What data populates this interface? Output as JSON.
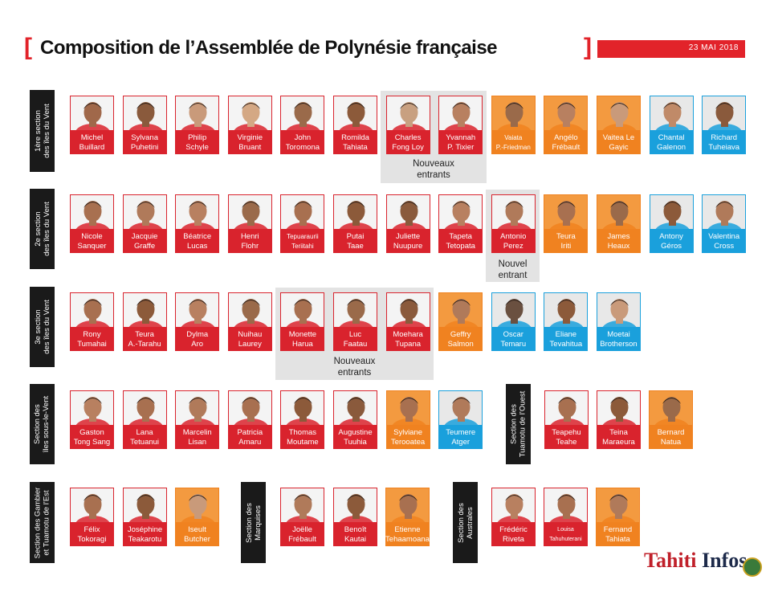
{
  "header": {
    "bracket_left": "[",
    "title": "Composition de l’Assemblée de Polynésie française",
    "bracket_right": "]",
    "date": "23 MAI 2018"
  },
  "colors": {
    "red_party": "#d9232d",
    "orange_party": "#f08220",
    "blue_party": "#1aa0dc",
    "accent": "#e2232a"
  },
  "sections": [
    "1ère section\ndes îles du Vent",
    "2e section\ndes îles du Vent",
    "3e section\ndes îles du Vent",
    "Section des\nîles sous-le-Vent",
    "Section des\nTuamotu de l’Ouest",
    "Section des Gambier\net Tuamotu de l’Est",
    "Section des\nMarquises",
    "Section des\nAustrales"
  ],
  "notes": {
    "nouveaux_entrants_l1": "Nouveaux",
    "nouveaux_entrants_l2": "entrants",
    "nouvel_entrant_l1": "Nouvel",
    "nouvel_entrant_l2": "entrant"
  },
  "members": [
    {
      "l1": "Michel",
      "l2": "Buillard",
      "color": "red",
      "skin": "#a0684a"
    },
    {
      "l1": "Sylvana",
      "l2": "Puhetini",
      "color": "red",
      "skin": "#8a5a3c"
    },
    {
      "l1": "Philip",
      "l2": "Schyle",
      "color": "red",
      "skin": "#c99a7a"
    },
    {
      "l1": "Virginie",
      "l2": "Bruant",
      "color": "red",
      "skin": "#d4a884"
    },
    {
      "l1": "John",
      "l2": "Toromona",
      "color": "red",
      "skin": "#9a6a4a"
    },
    {
      "l1": "Romilda",
      "l2": "Tahiata",
      "color": "red",
      "skin": "#8c5a3a"
    },
    {
      "l1": "Charles",
      "l2": "Fong Loy",
      "color": "red",
      "skin": "#c8a080"
    },
    {
      "l1": "Yvannah",
      "l2": "P. Tixier",
      "color": "red",
      "skin": "#b88060"
    },
    {
      "l1": "Vaiata",
      "l2": "P.-Friedman",
      "color": "orange",
      "skin": "#9a6a4a"
    },
    {
      "l1": "Angélo",
      "l2": "Frébault",
      "color": "orange",
      "skin": "#b88060"
    },
    {
      "l1": "Vaitea Le",
      "l2": "Gayic",
      "color": "orange",
      "skin": "#c99a7a"
    },
    {
      "l1": "Chantal",
      "l2": "Galenon",
      "color": "blue",
      "skin": "#c08a68"
    },
    {
      "l1": "Richard",
      "l2": "Tuheiava",
      "color": "blue",
      "skin": "#8a5a3c"
    },
    {
      "l1": "Nicole",
      "l2": "Sanquer",
      "color": "red",
      "skin": "#a87050"
    },
    {
      "l1": "Jacquie",
      "l2": "Graffe",
      "color": "red",
      "skin": "#b07a5a"
    },
    {
      "l1": "Béatrice",
      "l2": "Lucas",
      "color": "red",
      "skin": "#b88060"
    },
    {
      "l1": "Henri",
      "l2": "Flohr",
      "color": "red",
      "skin": "#9a6a4a"
    },
    {
      "l1": "Tepuaraurii",
      "l2": "Teriitahi",
      "color": "red",
      "skin": "#a87050"
    },
    {
      "l1": "Putai",
      "l2": "Taae",
      "color": "red",
      "skin": "#8c5a3a"
    },
    {
      "l1": "Juliette",
      "l2": "Nuupure",
      "color": "red",
      "skin": "#8a5a3c"
    },
    {
      "l1": "Tapeta",
      "l2": "Tetopata",
      "color": "red",
      "skin": "#b88060"
    },
    {
      "l1": "Antonio",
      "l2": "Perez",
      "color": "red",
      "skin": "#b07a5a"
    },
    {
      "l1": "Teura",
      "l2": "Iriti",
      "color": "orange",
      "skin": "#a87050"
    },
    {
      "l1": "James",
      "l2": "Heaux",
      "color": "orange",
      "skin": "#9a6a4a"
    },
    {
      "l1": "Antony",
      "l2": "Géros",
      "color": "blue",
      "skin": "#8c5a3a"
    },
    {
      "l1": "Valentina",
      "l2": "Cross",
      "color": "blue",
      "skin": "#b07a5a"
    },
    {
      "l1": "Rony",
      "l2": "Tumahai",
      "color": "red",
      "skin": "#a87050"
    },
    {
      "l1": "Teura",
      "l2": "A.-Tarahu",
      "color": "red",
      "skin": "#8c5a3a"
    },
    {
      "l1": "Dylma",
      "l2": "Aro",
      "color": "red",
      "skin": "#b88060"
    },
    {
      "l1": "Nuihau",
      "l2": "Laurey",
      "color": "red",
      "skin": "#9a6a4a"
    },
    {
      "l1": "Monette",
      "l2": "Harua",
      "color": "red",
      "skin": "#a87050"
    },
    {
      "l1": "Luc",
      "l2": "Faatau",
      "color": "red",
      "skin": "#9a6a4a"
    },
    {
      "l1": "Moehara",
      "l2": "Tupana",
      "color": "red",
      "skin": "#8a5a3c"
    },
    {
      "l1": "Geffry",
      "l2": "Salmon",
      "color": "orange",
      "skin": "#b07a5a"
    },
    {
      "l1": "Oscar",
      "l2": "Temaru",
      "color": "blue",
      "skin": "#6a5040"
    },
    {
      "l1": "Eliane",
      "l2": "Tevahitua",
      "color": "blue",
      "skin": "#8c5a3a"
    },
    {
      "l1": "Moetai",
      "l2": "Brotherson",
      "color": "blue",
      "skin": "#c99a7a"
    },
    {
      "l1": "Gaston",
      "l2": "Tong Sang",
      "color": "red",
      "skin": "#b88060"
    },
    {
      "l1": "Lana",
      "l2": "Tetuanui",
      "color": "red",
      "skin": "#a87050"
    },
    {
      "l1": "Marcelin",
      "l2": "Lisan",
      "color": "red",
      "skin": "#b07a5a"
    },
    {
      "l1": "Patricia",
      "l2": "Amaru",
      "color": "red",
      "skin": "#a87050"
    },
    {
      "l1": "Thomas",
      "l2": "Moutame",
      "color": "red",
      "skin": "#8c5a3a"
    },
    {
      "l1": "Augustine",
      "l2": "Tuuhia",
      "color": "red",
      "skin": "#8a5a3c"
    },
    {
      "l1": "Sylviane",
      "l2": "Terooatea",
      "color": "orange",
      "skin": "#a87050"
    },
    {
      "l1": "Teumere",
      "l2": "Atger",
      "color": "blue",
      "skin": "#b07a5a"
    },
    {
      "l1": "Teapehu",
      "l2": "Teahe",
      "color": "red",
      "skin": "#a87050"
    },
    {
      "l1": "Teina",
      "l2": "Maraeura",
      "color": "red",
      "skin": "#8c5a3a"
    },
    {
      "l1": "Bernard",
      "l2": "Natua",
      "color": "orange",
      "skin": "#9a6a4a"
    },
    {
      "l1": "Félix",
      "l2": "Tokoragi",
      "color": "red",
      "skin": "#a87050"
    },
    {
      "l1": "Joséphine",
      "l2": "Teakarotu",
      "color": "red",
      "skin": "#8c5a3a"
    },
    {
      "l1": "Iseult",
      "l2": "Butcher",
      "color": "orange",
      "skin": "#c99a7a"
    },
    {
      "l1": "Joëlle",
      "l2": "Frébault",
      "color": "red",
      "skin": "#b07a5a"
    },
    {
      "l1": "Benoît",
      "l2": "Kautai",
      "color": "red",
      "skin": "#8c5a3a"
    },
    {
      "l1": "Etienne",
      "l2": "Tehaamoana",
      "color": "orange",
      "skin": "#a87050"
    },
    {
      "l1": "Frédéric",
      "l2": "Riveta",
      "color": "red",
      "skin": "#b88060"
    },
    {
      "l1": "Louisa",
      "l2": "Tahuhuterani",
      "color": "red",
      "skin": "#a87050"
    },
    {
      "l1": "Fernand",
      "l2": "Tahiata",
      "color": "orange",
      "skin": "#b07a5a"
    }
  ],
  "logo": {
    "part1": "Tahiti ",
    "part2": "Infos"
  }
}
